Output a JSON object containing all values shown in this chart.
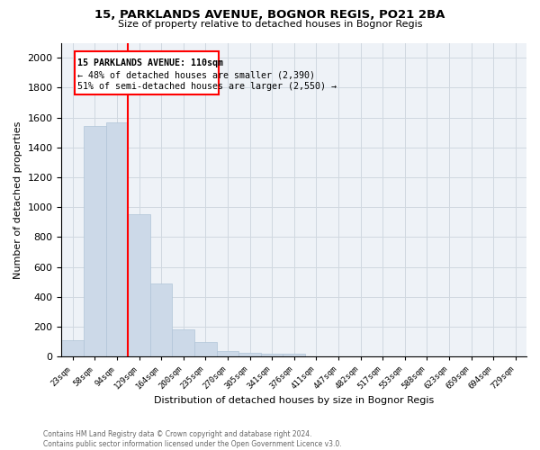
{
  "title_line1": "15, PARKLANDS AVENUE, BOGNOR REGIS, PO21 2BA",
  "title_line2": "Size of property relative to detached houses in Bognor Regis",
  "xlabel": "Distribution of detached houses by size in Bognor Regis",
  "ylabel": "Number of detached properties",
  "footnote": "Contains HM Land Registry data © Crown copyright and database right 2024.\nContains public sector information licensed under the Open Government Licence v3.0.",
  "bar_labels": [
    "23sqm",
    "58sqm",
    "94sqm",
    "129sqm",
    "164sqm",
    "200sqm",
    "235sqm",
    "270sqm",
    "305sqm",
    "341sqm",
    "376sqm",
    "411sqm",
    "447sqm",
    "482sqm",
    "517sqm",
    "553sqm",
    "588sqm",
    "623sqm",
    "659sqm",
    "694sqm",
    "729sqm"
  ],
  "bar_values": [
    110,
    1540,
    1570,
    950,
    490,
    185,
    100,
    40,
    25,
    18,
    18,
    0,
    0,
    0,
    0,
    0,
    0,
    0,
    0,
    0,
    0
  ],
  "bar_color": "#ccd9e8",
  "bar_edge_color": "#b0c4d8",
  "grid_color": "#d0d8e0",
  "bg_color": "#eef2f7",
  "red_line_x": 2.5,
  "annotation_title": "15 PARKLANDS AVENUE: 110sqm",
  "annotation_line2": "← 48% of detached houses are smaller (2,390)",
  "annotation_line3": "51% of semi-detached houses are larger (2,550) →",
  "ylim": [
    0,
    2100
  ],
  "yticks": [
    0,
    200,
    400,
    600,
    800,
    1000,
    1200,
    1400,
    1600,
    1800,
    2000
  ]
}
